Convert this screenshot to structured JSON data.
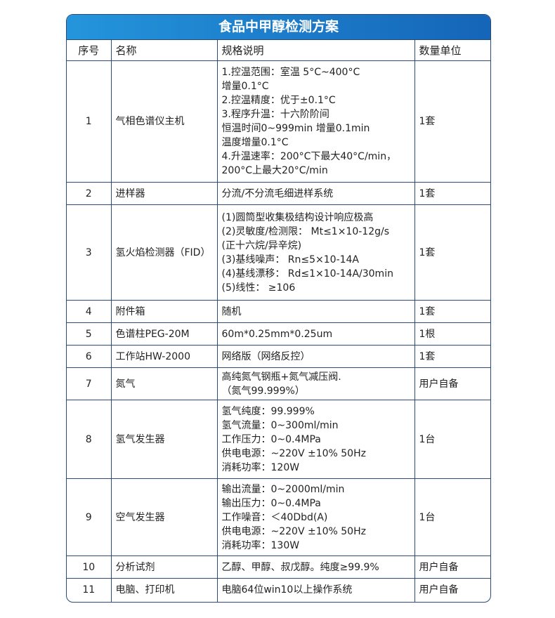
{
  "title": "食品中甲醇检测方案",
  "headers": [
    "序号",
    "名称",
    "规格说明",
    "数量单位"
  ],
  "rows": [
    {
      "no": "1",
      "name": "气相色谱仪主机",
      "spec": [
        "1.控温范围：室温 5°C~400°C",
        "增量0.1°C",
        "2.控温精度：优于±0.1°C",
        "3.程序升温：十六阶阶间",
        "恒温时间0~999min 增量0.1min",
        "温度增量0.1°C",
        "4.升温速率：200°C下最大40°C/min，",
        "200°C上最大20°C/min"
      ],
      "qty": "1套",
      "h": 173
    },
    {
      "no": "2",
      "name": "进样器",
      "spec": [
        "分流/不分流毛细进样系统"
      ],
      "qty": "1套",
      "h": 32
    },
    {
      "no": "3",
      "name": "氢火焰检测器（FID）",
      "spec": [
        "(1)圆筒型收集极结构设计响应极高",
        "(2)灵敏度/检测限： Mt≤1×10-12g/s",
        "(正十六烷/异辛烷)",
        "(3)基线噪声： Rn≤5×10-14A",
        "(4)基线漂移： Rd≤1×10-14A/30min",
        "(5)线性： ≥106"
      ],
      "qty": "1套",
      "h": 136
    },
    {
      "no": "4",
      "name": "附件箱",
      "spec": [
        "随机"
      ],
      "qty": "1套",
      "h": 32
    },
    {
      "no": "5",
      "name": "色谱柱PEG-20M",
      "spec": [
        "60m*0.25mm*0.25um"
      ],
      "qty": "1根",
      "h": 32
    },
    {
      "no": "6",
      "name": "工作站HW-2000",
      "spec": [
        "网络版（网络反控）"
      ],
      "qty": "1套",
      "h": 32
    },
    {
      "no": "7",
      "name": "氮气",
      "spec": [
        "高纯氮气钢瓶+氮气减压阀.",
        "（氮气99.999%）"
      ],
      "qty": "用户自备",
      "h": 46
    },
    {
      "no": "8",
      "name": "氢气发生器",
      "spec": [
        "氢气纯度：99.999%",
        "氢气流量：0~300ml/min",
        "工作压力：0~0.4MPa",
        "供电电源：~220V ±10% 50Hz",
        "消耗功率：120W"
      ],
      "qty": "1台",
      "h": 112
    },
    {
      "no": "9",
      "name": "空气发生器",
      "spec": [
        "输出流量：0~2000ml/min",
        "输出压力：0~0.4MPa",
        "工作噪音：＜40Dbd(A)",
        "供电电源：~220V ±10% 50Hz",
        "消耗功率：130W"
      ],
      "qty": "1台",
      "h": 110
    },
    {
      "no": "10",
      "name": "分析试剂",
      "spec": [
        "乙醇、甲醇、叔戊醇。纯度≥99.9%"
      ],
      "qty": "用户自备",
      "h": 32
    },
    {
      "no": "11",
      "name": "电脑、打印机",
      "spec": [
        "电脑64位win10以上操作系统"
      ],
      "qty": "用户自备",
      "h": 33
    }
  ]
}
